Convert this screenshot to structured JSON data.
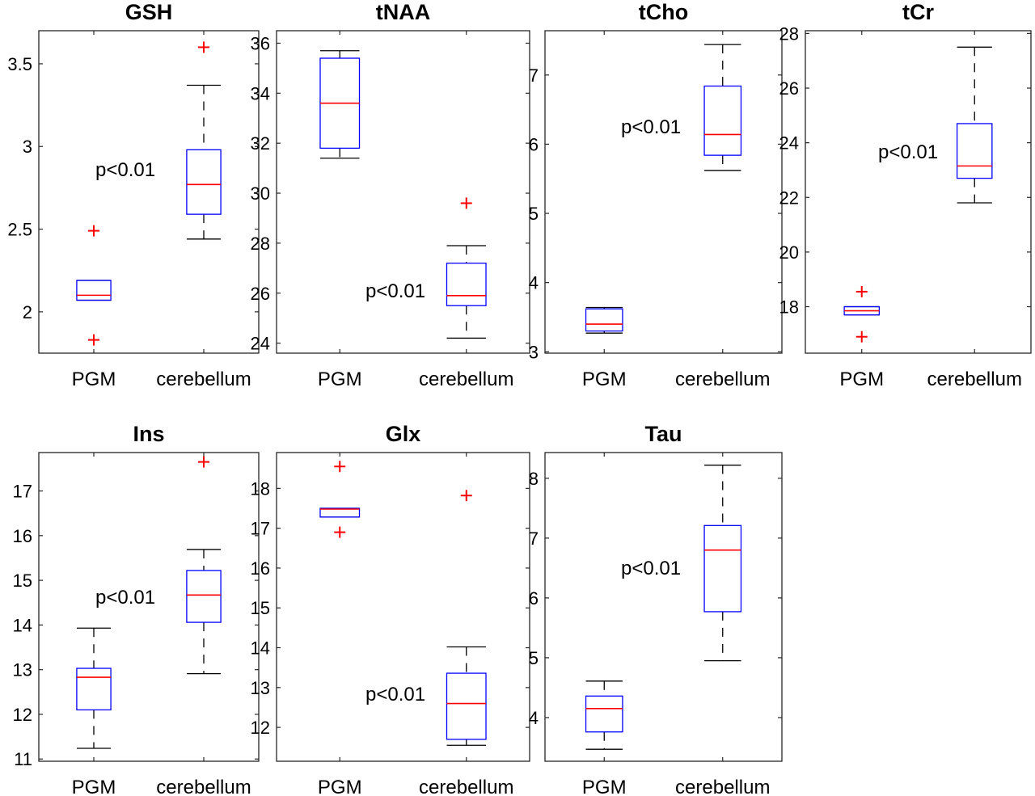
{
  "chart_data": [
    {
      "type": "box",
      "title": "GSH",
      "categories": [
        "PGM",
        "cerebellum"
      ],
      "ylim": [
        1.75,
        3.7
      ],
      "yticks": [
        "2",
        "2.5",
        "3",
        "3.5"
      ],
      "annotation": "p<0.01",
      "boxes": [
        {
          "whisker_low": 2.07,
          "q1": 2.07,
          "median": 2.1,
          "q3": 2.19,
          "whisker_high": 2.19,
          "outliers": [
            2.49,
            1.83
          ]
        },
        {
          "whisker_low": 2.44,
          "q1": 2.59,
          "median": 2.77,
          "q3": 2.98,
          "whisker_high": 3.37,
          "outliers": [
            3.6
          ]
        }
      ]
    },
    {
      "type": "box",
      "title": "tNAA",
      "categories": [
        "PGM",
        "cerebellum"
      ],
      "ylim": [
        23.6,
        36.5
      ],
      "yticks": [
        "24",
        "26",
        "28",
        "30",
        "32",
        "34",
        "36"
      ],
      "annotation": "p<0.01",
      "boxes": [
        {
          "whisker_low": 31.4,
          "q1": 31.8,
          "median": 33.6,
          "q3": 35.4,
          "whisker_high": 35.7,
          "outliers": []
        },
        {
          "whisker_low": 24.2,
          "q1": 25.5,
          "median": 25.9,
          "q3": 27.2,
          "whisker_high": 27.9,
          "outliers": [
            29.6
          ]
        }
      ]
    },
    {
      "type": "box",
      "title": "tCho",
      "categories": [
        "PGM",
        "cerebellum"
      ],
      "ylim": [
        2.98,
        7.64
      ],
      "yticks": [
        "3",
        "4",
        "5",
        "6",
        "7"
      ],
      "annotation": "p<0.01",
      "boxes": [
        {
          "whisker_low": 3.27,
          "q1": 3.3,
          "median": 3.4,
          "q3": 3.62,
          "whisker_high": 3.64,
          "outliers": []
        },
        {
          "whisker_low": 5.62,
          "q1": 5.84,
          "median": 6.14,
          "q3": 6.84,
          "whisker_high": 7.44,
          "outliers": []
        }
      ]
    },
    {
      "type": "box",
      "title": "tCr",
      "categories": [
        "PGM",
        "cerebellum"
      ],
      "ylim": [
        16.3,
        28.1
      ],
      "yticks": [
        "18",
        "20",
        "22",
        "24",
        "26",
        "28"
      ],
      "annotation": "p<0.01",
      "boxes": [
        {
          "whisker_low": 17.7,
          "q1": 17.7,
          "median": 17.85,
          "q3": 18.0,
          "whisker_high": 18.0,
          "outliers": [
            18.55,
            16.9
          ]
        },
        {
          "whisker_low": 21.8,
          "q1": 22.7,
          "median": 23.15,
          "q3": 24.7,
          "whisker_high": 27.5,
          "outliers": []
        }
      ]
    },
    {
      "type": "box",
      "title": "Ins",
      "categories": [
        "PGM",
        "cerebellum"
      ],
      "ylim": [
        10.95,
        17.86
      ],
      "yticks": [
        "11",
        "12",
        "13",
        "14",
        "15",
        "16",
        "17"
      ],
      "annotation": "p<0.01",
      "boxes": [
        {
          "whisker_low": 11.24,
          "q1": 12.1,
          "median": 12.83,
          "q3": 13.03,
          "whisker_high": 13.93,
          "outliers": []
        },
        {
          "whisker_low": 12.91,
          "q1": 14.06,
          "median": 14.67,
          "q3": 15.22,
          "whisker_high": 15.69,
          "outliers": [
            17.65
          ]
        }
      ]
    },
    {
      "type": "box",
      "title": "Glx",
      "categories": [
        "PGM",
        "cerebellum"
      ],
      "ylim": [
        11.15,
        18.9
      ],
      "yticks": [
        "12",
        "13",
        "14",
        "15",
        "16",
        "17",
        "18"
      ],
      "annotation": "p<0.01",
      "boxes": [
        {
          "whisker_low": 17.28,
          "q1": 17.28,
          "median": 17.48,
          "q3": 17.5,
          "whisker_high": 17.5,
          "outliers": [
            18.55,
            16.9
          ]
        },
        {
          "whisker_low": 11.55,
          "q1": 11.7,
          "median": 12.6,
          "q3": 13.36,
          "whisker_high": 14.02,
          "outliers": [
            17.82
          ]
        }
      ]
    },
    {
      "type": "box",
      "title": "Tau",
      "categories": [
        "PGM",
        "cerebellum"
      ],
      "ylim": [
        3.27,
        8.43
      ],
      "yticks": [
        "4",
        "5",
        "6",
        "7",
        "8"
      ],
      "annotation": "p<0.01",
      "boxes": [
        {
          "whisker_low": 3.47,
          "q1": 3.76,
          "median": 4.15,
          "q3": 4.36,
          "whisker_high": 4.61,
          "outliers": []
        },
        {
          "whisker_low": 4.95,
          "q1": 5.77,
          "median": 6.8,
          "q3": 7.21,
          "whisker_high": 8.22,
          "outliers": []
        }
      ]
    }
  ],
  "colors": {
    "box": "#0000ff",
    "median": "#ff0000",
    "outlier": "#ff0000",
    "whisker": "#000000",
    "axis": "#262626"
  }
}
